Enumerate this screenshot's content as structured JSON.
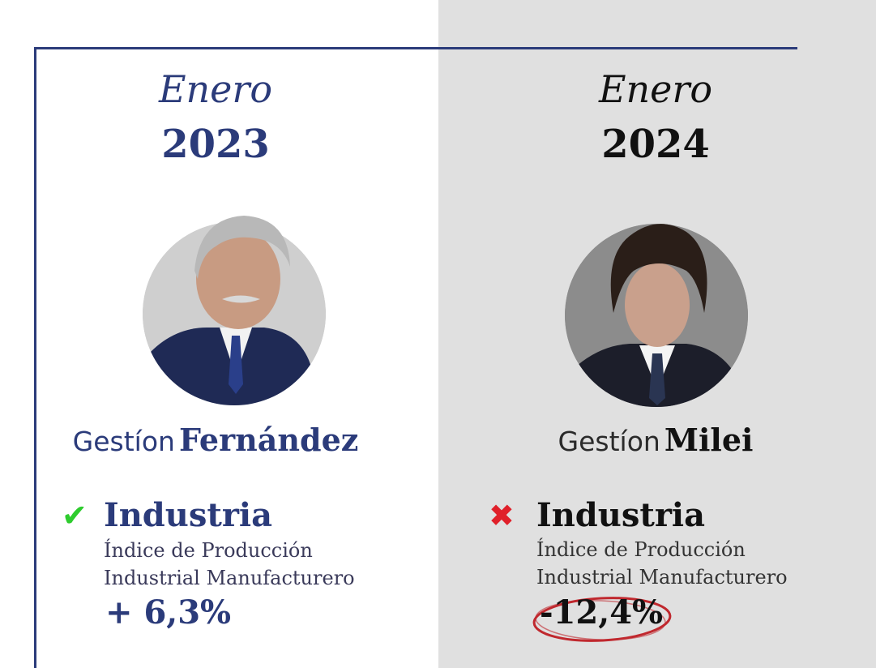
{
  "left": {
    "month": "Enero",
    "year": "2023",
    "gestion_word": "Gestíon",
    "gestion_name": "Fernández",
    "status_icon": "check-icon",
    "status_color": "#2ecc2e",
    "indicator_title": "Industria",
    "indicator_line1": "Índice de Producción",
    "indicator_line2": "Industrial Manufacturero",
    "indicator_value": "+ 6,3%"
  },
  "right": {
    "month": "Enero",
    "year": "2024",
    "gestion_word": "Gestíon",
    "gestion_name": "Milei",
    "status_icon": "cross-icon",
    "status_color": "#e0202a",
    "indicator_title": "Industria",
    "indicator_line1": "Índice de Producción",
    "indicator_line2": "Industrial Manufacturero",
    "indicator_value": "-12,4%"
  },
  "colors": {
    "navy": "#2b3b7a",
    "right_panel_bg": "#e0e0e0",
    "highlight_circle": "#c0282e"
  }
}
